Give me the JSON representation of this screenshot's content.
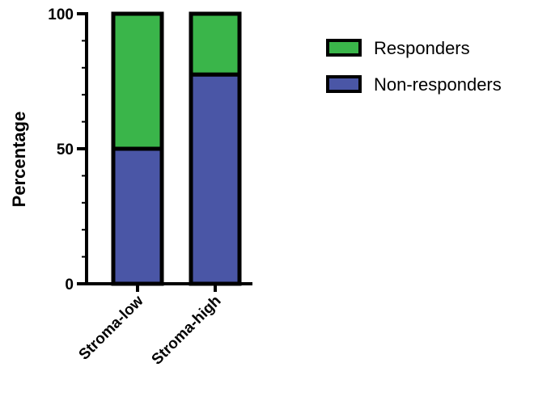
{
  "chart_data": {
    "type": "bar",
    "stacked": true,
    "categories": [
      "Stroma-low",
      "Stroma-high"
    ],
    "series": [
      {
        "name": "Non-responders",
        "color": "#4a56a6",
        "values": [
          50,
          77.5
        ]
      },
      {
        "name": "Responders",
        "color": "#3ab54a",
        "values": [
          50,
          22.5
        ]
      }
    ],
    "title": "",
    "xlabel": "",
    "ylabel": "Percentage",
    "ylim": [
      0,
      100
    ],
    "yticks": [
      "0",
      "50",
      "100"
    ],
    "legend": {
      "position": "right",
      "order": [
        "Responders",
        "Non-responders"
      ]
    },
    "grid": false
  }
}
